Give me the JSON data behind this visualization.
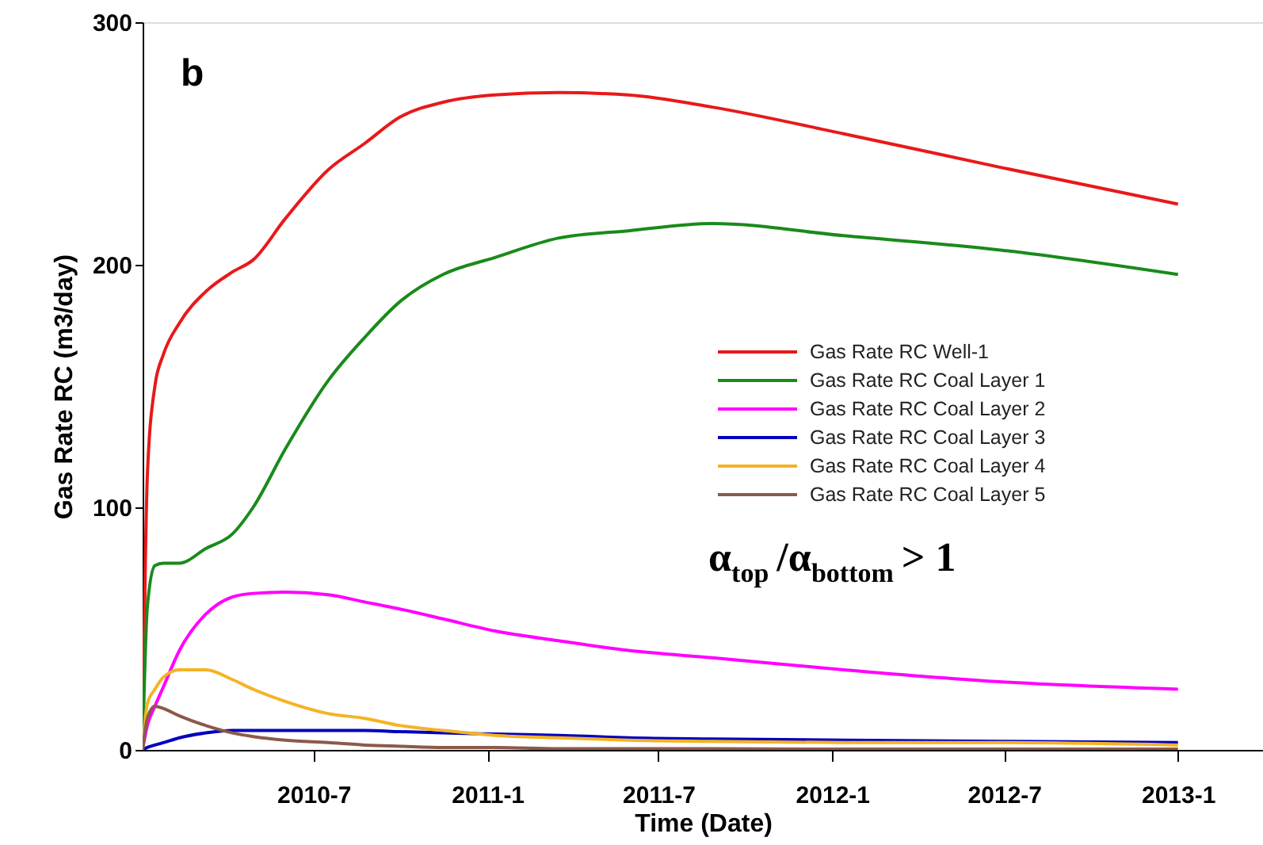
{
  "chart_data": {
    "type": "line",
    "xlabel": "Time (Date)",
    "ylabel": "Gas Rate RC (m3/day)",
    "annotations": [
      "b",
      "α$_{top}$/α$_{bottom}$ > 1"
    ],
    "x": [
      "2010-01-01",
      "2010-01-06",
      "2010-01-14",
      "2010-01-23",
      "2010-02-09",
      "2010-03-09",
      "2010-04-06",
      "2010-04-28",
      "2010-06-01",
      "2010-07-16",
      "2010-08-24",
      "2010-10-01",
      "2010-11-15",
      "2011-01-09",
      "2011-03-17",
      "2011-05-30",
      "2011-08-27",
      "2012-01-13",
      "2012-06-29",
      "2013-01-01"
    ],
    "series": [
      {
        "name": "Gas Rate RC Well-1",
        "color": "#e8191a",
        "values": [
          0,
          113,
          150,
          163,
          176,
          189,
          197,
          202,
          219,
          239,
          250,
          261,
          267,
          270,
          271,
          270,
          265,
          254,
          240,
          225
        ]
      },
      {
        "name": "Gas Rate RC Coal Layer 1",
        "color": "#1a8a1a",
        "values": [
          0,
          59,
          76,
          77,
          77,
          83,
          89,
          100,
          124,
          152,
          170,
          185,
          196,
          203,
          211,
          214,
          217,
          212,
          206,
          196
        ]
      },
      {
        "name": "Gas Rate RC Coal Layer 2",
        "color": "#ff00ff",
        "values": [
          0,
          10,
          18,
          26,
          41,
          56,
          63,
          64.5,
          65,
          64,
          61,
          58,
          54,
          49,
          45,
          41,
          38,
          33,
          28,
          25
        ]
      },
      {
        "name": "Gas Rate RC Coal Layer 3",
        "color": "#0000c0",
        "values": [
          0,
          1,
          2,
          3,
          5,
          7,
          8,
          8,
          8,
          8,
          8,
          7.5,
          7,
          6.5,
          6,
          5,
          4.5,
          4,
          3.5,
          3
        ]
      },
      {
        "name": "Gas Rate RC Coal Layer 4",
        "color": "#f5b324",
        "values": [
          0,
          19,
          25,
          30,
          33,
          33,
          29,
          25,
          20,
          15,
          13,
          10,
          8,
          6,
          5,
          4,
          3.5,
          3,
          3,
          2
        ]
      },
      {
        "name": "Gas Rate RC Coal Layer 5",
        "color": "#8b5a4a",
        "values": [
          0,
          13,
          18,
          17,
          14,
          10,
          7,
          5.5,
          4,
          3,
          2,
          1.5,
          1,
          1,
          0.5,
          0.5,
          0.5,
          0.3,
          0.3,
          0.3
        ]
      }
    ],
    "xlim": [
      "2010-01-01",
      "2013-04-01"
    ],
    "xticks": [
      {
        "value": "2010-07-01",
        "label": "2010-7"
      },
      {
        "value": "2011-01-01",
        "label": "2011-1"
      },
      {
        "value": "2011-07-01",
        "label": "2011-7"
      },
      {
        "value": "2012-01-01",
        "label": "2012-1"
      },
      {
        "value": "2012-07-01",
        "label": "2012-7"
      },
      {
        "value": "2013-01-01",
        "label": "2013-1"
      }
    ],
    "ylim": [
      0,
      300
    ],
    "yticks": [
      0,
      100,
      200,
      300
    ],
    "grid": false,
    "legend": "right",
    "line_style": "solid"
  }
}
